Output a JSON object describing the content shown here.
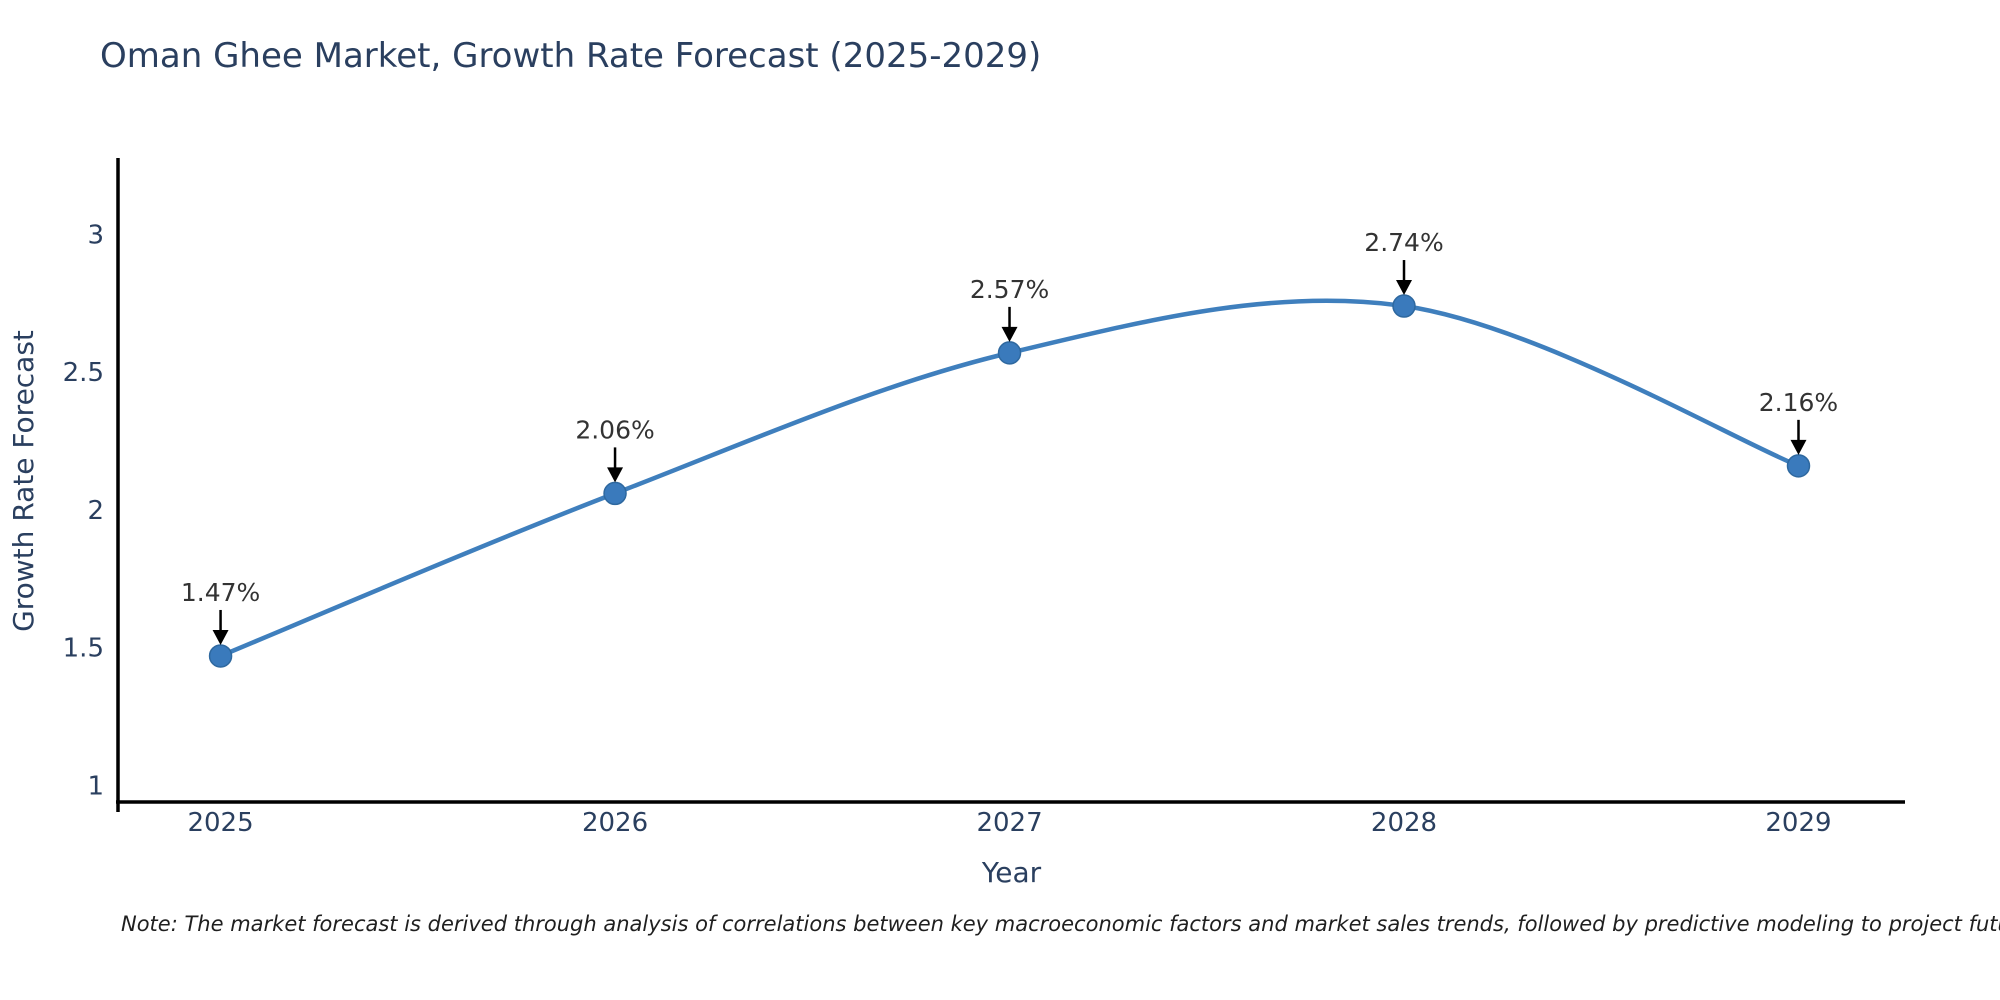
{
  "title": "Oman Ghee Market, Growth Rate Forecast (2025-2029)",
  "note": "Note: The market forecast is derived through analysis of correlations between key macroeconomic factors and market sales trends, followed by predictive modeling to project future sales",
  "chart_data": {
    "type": "line",
    "title": "Oman Ghee Market, Growth Rate Forecast (2025-2029)",
    "xlabel": "Year",
    "ylabel": "Growth Rate Forecast",
    "x": [
      2025,
      2026,
      2027,
      2028,
      2029
    ],
    "values": [
      1.47,
      2.06,
      2.57,
      2.74,
      2.16
    ],
    "point_labels": [
      "1.47%",
      "2.06%",
      "2.57%",
      "2.74%",
      "2.16%"
    ],
    "x_tick_labels": [
      "2025",
      "2026",
      "2027",
      "2028",
      "2029"
    ],
    "y_ticks": [
      1,
      1.5,
      2,
      2.5,
      3
    ],
    "y_tick_labels": [
      "1",
      "1.5",
      "2",
      "2.5",
      "3"
    ],
    "xlim": [
      2024.74,
      2029.27
    ],
    "ylim": [
      0.94,
      3.27
    ],
    "grid": false,
    "legend": false,
    "line_shape": "spline",
    "colors": {
      "line": "#3f7fbd",
      "marker_fill": "#3a7abc",
      "marker_edge": "#2e689f",
      "axis_line": "#000000",
      "tick_label": "#2a3f5f",
      "axis_title": "#2a3f5f",
      "title": "#2a3f5f",
      "annotation_text": "#333333",
      "annotation_arrow": "#000000",
      "background": "#ffffff"
    }
  }
}
